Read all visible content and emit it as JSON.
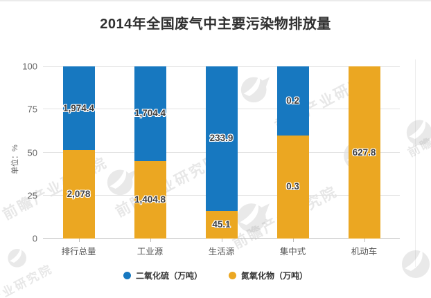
{
  "watermark": {
    "brand_text": "前瞻产业研究院",
    "corner_bottom_left": "产业研究院",
    "corner_top_right": "前瞻"
  },
  "chart_data": {
    "type": "bar",
    "subtype": "stacked-100-percent",
    "title": "2014年全国废气中主要污染物排放量",
    "ylabel": "单位：%",
    "ylim": [
      0,
      100
    ],
    "yticks": [
      0,
      25,
      50,
      75,
      100
    ],
    "grid": true,
    "legend_position": "bottom",
    "categories": [
      "排行总量",
      "工业源",
      "生活源",
      "集中式",
      "机动车"
    ],
    "series": [
      {
        "name": "二氧化硫（万吨）",
        "color": "#1778C0",
        "stack_position": "top",
        "values": [
          1974.4,
          1704.4,
          233.9,
          0.2,
          0
        ],
        "labels": [
          "1,974.4",
          "1,704.4",
          "233.9",
          "0.2",
          ""
        ]
      },
      {
        "name": "氮氧化物（万吨）",
        "color": "#EBA722",
        "stack_position": "bottom",
        "values": [
          2078,
          1404.8,
          45.1,
          0.3,
          627.8
        ],
        "labels": [
          "2,078",
          "1,404.8",
          "45.1",
          "0.3",
          "627.8"
        ]
      }
    ]
  }
}
